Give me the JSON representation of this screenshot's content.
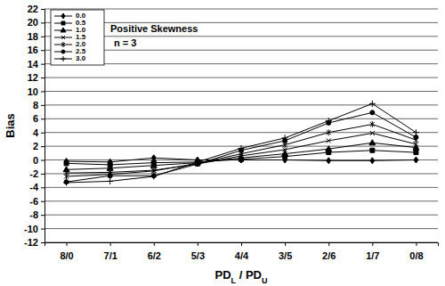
{
  "chart_data": {
    "type": "line",
    "x_label": "PDL / PDU",
    "y_label": "Bias",
    "annotations": [
      "Positive Skewness",
      "n = 3"
    ],
    "categories": [
      "8/0",
      "7/1",
      "6/2",
      "5/3",
      "4/4",
      "3/5",
      "2/6",
      "1/7",
      "0/8"
    ],
    "series": [
      {
        "name": "0.0",
        "color": "#000000",
        "marker": "diamond",
        "values": [
          -0.2,
          -0.3,
          0.3,
          0.0,
          0.0,
          0.0,
          -0.1,
          -0.1,
          0.0
        ]
      },
      {
        "name": "0.5",
        "color": "#000000",
        "marker": "square",
        "values": [
          -0.5,
          -0.7,
          -0.4,
          -0.3,
          0.1,
          0.5,
          1.1,
          1.4,
          1.1
        ]
      },
      {
        "name": "1.0",
        "color": "#000000",
        "marker": "triangle",
        "values": [
          -1.4,
          -1.2,
          -0.8,
          -0.4,
          0.3,
          0.9,
          1.6,
          2.5,
          1.8
        ]
      },
      {
        "name": "1.5",
        "color": "#000000",
        "marker": "x",
        "values": [
          -1.9,
          -1.8,
          -1.5,
          -0.6,
          0.6,
          1.5,
          2.8,
          3.9,
          2.3
        ]
      },
      {
        "name": "2.0",
        "color": "#000000",
        "marker": "asterisk",
        "values": [
          -2.4,
          -2.1,
          -1.6,
          -0.5,
          0.9,
          2.2,
          4.0,
          5.2,
          2.9
        ]
      },
      {
        "name": "2.5",
        "color": "#000000",
        "marker": "circle",
        "values": [
          -3.2,
          -2.3,
          -2.3,
          -0.6,
          1.4,
          2.8,
          5.4,
          6.9,
          3.3
        ]
      },
      {
        "name": "3.0",
        "color": "#000000",
        "marker": "plus",
        "values": [
          -3.3,
          -3.1,
          -2.4,
          -0.3,
          1.7,
          3.2,
          5.7,
          8.2,
          4.0
        ]
      }
    ],
    "ylim": [
      -12,
      22
    ],
    "yticks": [
      -12,
      -10,
      -8,
      -6,
      -4,
      -2,
      0,
      2,
      4,
      6,
      8,
      10,
      12,
      14,
      16,
      18,
      20,
      22
    ],
    "grid": true,
    "legend": "upper-left"
  }
}
